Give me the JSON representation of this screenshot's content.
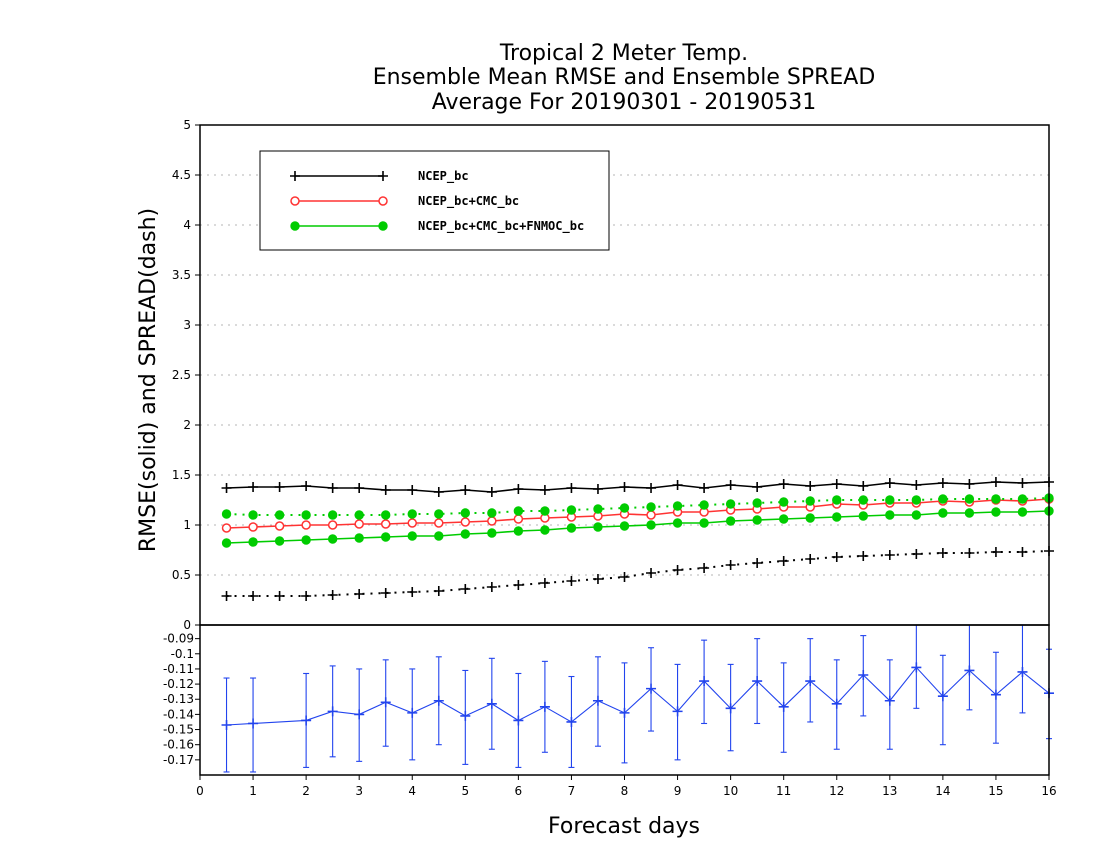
{
  "chart_data": [
    {
      "type": "line",
      "title": [
        "Tropical 2 Meter Temp.",
        "Ensemble Mean RMSE and Ensemble SPREAD",
        "Average For 20190301 - 20190531"
      ],
      "ylabel": "RMSE(solid)  and  SPREAD(dash)",
      "ylim": [
        0,
        5
      ],
      "yticks": [
        "0",
        "0.5",
        "1",
        "1.5",
        "2",
        "2.5",
        "3",
        "3.5",
        "4",
        "4.5",
        "5"
      ],
      "xlim": [
        0,
        16
      ],
      "grid": true,
      "legend_position": "top-left",
      "x": [
        0.5,
        1,
        1.5,
        2,
        2.5,
        3,
        3.5,
        4,
        4.5,
        5,
        5.5,
        6,
        6.5,
        7,
        7.5,
        8,
        8.5,
        9,
        9.5,
        10,
        10.5,
        11,
        11.5,
        12,
        12.5,
        13,
        13.5,
        14,
        14.5,
        15,
        15.5,
        16
      ],
      "series": [
        {
          "name": "NCEP_bc",
          "color": "#000000",
          "marker": "plus",
          "rmse": [
            1.37,
            1.38,
            1.38,
            1.39,
            1.37,
            1.37,
            1.35,
            1.35,
            1.33,
            1.35,
            1.33,
            1.36,
            1.35,
            1.37,
            1.36,
            1.38,
            1.37,
            1.4,
            1.37,
            1.4,
            1.38,
            1.41,
            1.39,
            1.41,
            1.39,
            1.42,
            1.4,
            1.42,
            1.41,
            1.43,
            1.42,
            1.43
          ],
          "spread": [
            0.29,
            0.29,
            0.29,
            0.29,
            0.3,
            0.31,
            0.32,
            0.33,
            0.34,
            0.36,
            0.38,
            0.4,
            0.42,
            0.44,
            0.46,
            0.48,
            0.52,
            0.55,
            0.57,
            0.6,
            0.62,
            0.64,
            0.66,
            0.68,
            0.69,
            0.7,
            0.71,
            0.72,
            0.72,
            0.73,
            0.73,
            0.74
          ]
        },
        {
          "name": "NCEP_bc+CMC_bc",
          "color": "#ff3333",
          "marker": "open-circle",
          "rmse": [
            0.97,
            0.98,
            0.99,
            1.0,
            1.0,
            1.01,
            1.01,
            1.02,
            1.02,
            1.03,
            1.04,
            1.06,
            1.07,
            1.08,
            1.09,
            1.11,
            1.1,
            1.13,
            1.13,
            1.15,
            1.16,
            1.18,
            1.18,
            1.21,
            1.2,
            1.22,
            1.22,
            1.24,
            1.23,
            1.25,
            1.24,
            1.26
          ],
          "spread": null
        },
        {
          "name": "NCEP_bc+CMC_bc+FNMOC_bc",
          "color": "#00cc00",
          "marker": "filled-circle",
          "rmse": [
            0.82,
            0.83,
            0.84,
            0.85,
            0.86,
            0.87,
            0.88,
            0.89,
            0.89,
            0.91,
            0.92,
            0.94,
            0.95,
            0.97,
            0.98,
            0.99,
            1.0,
            1.02,
            1.02,
            1.04,
            1.05,
            1.06,
            1.07,
            1.08,
            1.09,
            1.1,
            1.1,
            1.12,
            1.12,
            1.13,
            1.13,
            1.14
          ],
          "spread": [
            1.11,
            1.1,
            1.1,
            1.1,
            1.1,
            1.1,
            1.1,
            1.11,
            1.11,
            1.12,
            1.12,
            1.14,
            1.14,
            1.15,
            1.16,
            1.17,
            1.18,
            1.19,
            1.2,
            1.21,
            1.22,
            1.23,
            1.24,
            1.25,
            1.25,
            1.25,
            1.25,
            1.26,
            1.26,
            1.26,
            1.26,
            1.27
          ]
        }
      ]
    },
    {
      "type": "line",
      "xlabel": "Forecast days",
      "xticks": [
        "0",
        "1",
        "2",
        "3",
        "4",
        "5",
        "6",
        "7",
        "8",
        "9",
        "10",
        "11",
        "12",
        "13",
        "14",
        "15",
        "16"
      ],
      "ylim": [
        -0.18,
        -0.081
      ],
      "yticks": [
        "-0.09",
        "-0.1",
        "-0.11",
        "-0.12",
        "-0.13",
        "-0.14",
        "-0.15",
        "-0.16",
        "-0.17"
      ],
      "series": [
        {
          "color": "#2244ee",
          "marker": "plus",
          "error_bars": true,
          "x": [
            0.5,
            1,
            2,
            2.5,
            3,
            3.5,
            4,
            4.5,
            5,
            5.5,
            6,
            6.5,
            7,
            7.5,
            8,
            8.5,
            9,
            9.5,
            10,
            10.5,
            11,
            11.5,
            12,
            12.5,
            13,
            13.5,
            14,
            14.5,
            15,
            15.5,
            16
          ],
          "y": [
            -0.147,
            -0.146,
            -0.144,
            -0.138,
            -0.14,
            -0.132,
            -0.139,
            -0.131,
            -0.141,
            -0.133,
            -0.144,
            -0.135,
            -0.145,
            -0.131,
            -0.139,
            -0.123,
            -0.138,
            -0.118,
            -0.136,
            -0.118,
            -0.135,
            -0.118,
            -0.133,
            -0.114,
            -0.131,
            -0.109,
            -0.128,
            -0.111,
            -0.127,
            -0.112,
            -0.126
          ],
          "lo": [
            -0.178,
            -0.178,
            -0.175,
            -0.168,
            -0.171,
            -0.161,
            -0.17,
            -0.16,
            -0.173,
            -0.163,
            -0.175,
            -0.165,
            -0.175,
            -0.161,
            -0.172,
            -0.151,
            -0.17,
            -0.146,
            -0.164,
            -0.146,
            -0.165,
            -0.145,
            -0.163,
            -0.141,
            -0.163,
            -0.136,
            -0.16,
            -0.137,
            -0.159,
            -0.139,
            -0.156
          ],
          "hi": [
            -0.116,
            -0.116,
            -0.113,
            -0.108,
            -0.11,
            -0.104,
            -0.11,
            -0.102,
            -0.111,
            -0.103,
            -0.113,
            -0.105,
            -0.115,
            -0.102,
            -0.106,
            -0.096,
            -0.107,
            -0.091,
            -0.107,
            -0.09,
            -0.106,
            -0.09,
            -0.104,
            -0.088,
            -0.104,
            -0.08,
            -0.101,
            -0.08,
            -0.099,
            -0.081,
            -0.097
          ]
        }
      ]
    }
  ]
}
